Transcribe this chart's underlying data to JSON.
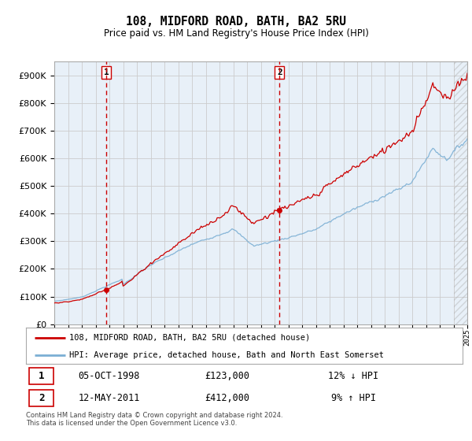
{
  "title": "108, MIDFORD ROAD, BATH, BA2 5RU",
  "subtitle": "Price paid vs. HM Land Registry's House Price Index (HPI)",
  "hpi_label": "HPI: Average price, detached house, Bath and North East Somerset",
  "property_label": "108, MIDFORD ROAD, BATH, BA2 5RU (detached house)",
  "footer": "Contains HM Land Registry data © Crown copyright and database right 2024.\nThis data is licensed under the Open Government Licence v3.0.",
  "sale1": {
    "date": "05-OCT-1998",
    "price": 123000,
    "pct": "12%",
    "dir": "↓",
    "label": "1"
  },
  "sale2": {
    "date": "12-MAY-2011",
    "price": 412000,
    "pct": "9%",
    "dir": "↑",
    "label": "2"
  },
  "ylim": [
    0,
    950000
  ],
  "yticks": [
    0,
    100000,
    200000,
    300000,
    400000,
    500000,
    600000,
    700000,
    800000,
    900000
  ],
  "hpi_color": "#7bafd4",
  "property_color": "#cc0000",
  "vline_color": "#cc0000",
  "grid_color": "#cccccc",
  "chart_bg": "#e8f0f8",
  "background_color": "#ffffff",
  "sale1_x": 1998.79,
  "sale2_x": 2011.36,
  "x_min": 1995,
  "x_max": 2025
}
